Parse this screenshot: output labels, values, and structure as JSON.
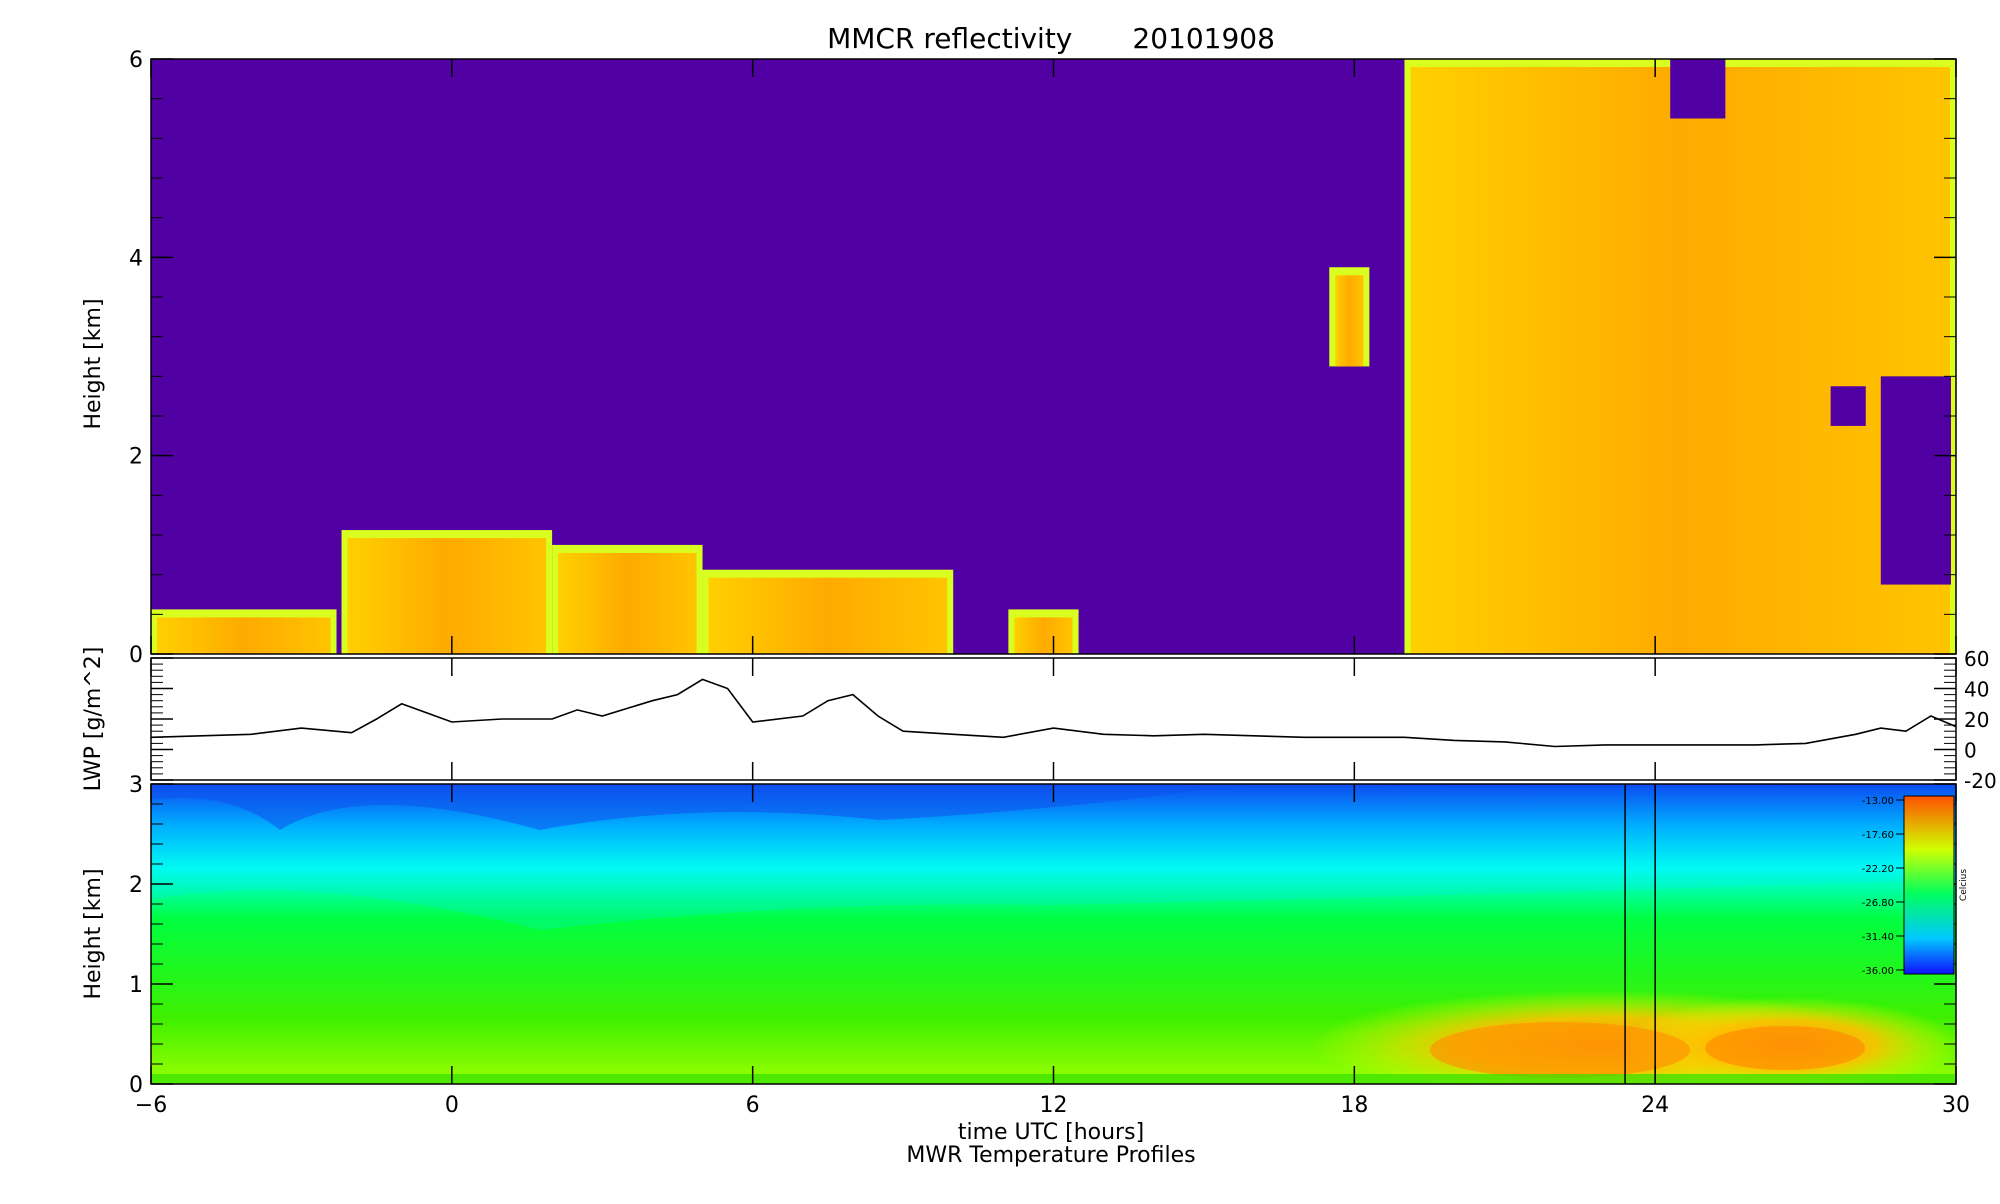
{
  "figure": {
    "title": "MMCR reflectivity",
    "date": "20101908",
    "xlabel": "time UTC [hours]",
    "bottom_caption": "MWR Temperature Profiles"
  },
  "chart_data": [
    {
      "type": "heatmap",
      "name": "reflectivity",
      "ylabel": "Height [km]",
      "xlim": [
        -6,
        30
      ],
      "ylim": [
        0,
        6
      ],
      "xticks": [
        -6,
        0,
        6,
        12,
        18,
        24,
        30
      ],
      "yticks": [
        0,
        2,
        4,
        6
      ],
      "background_color": "#5000a3",
      "cloud_regions": [
        {
          "x": [
            -6,
            -2.3
          ],
          "top": 0.45
        },
        {
          "x": [
            -2.2,
            2.0
          ],
          "top": 1.25
        },
        {
          "x": [
            2.0,
            5.0
          ],
          "top": 1.1
        },
        {
          "x": [
            5.0,
            10.0
          ],
          "top": 0.85
        },
        {
          "x": [
            11.1,
            12.5
          ],
          "top": 0.45
        },
        {
          "x": [
            17.5,
            18.3
          ],
          "y": [
            2.9,
            3.9
          ]
        },
        {
          "x": [
            19.0,
            30.0
          ],
          "top": 6.0
        }
      ],
      "colors": {
        "cloud_edge": "#d8ff20",
        "cloud_core": "#ffa500"
      }
    },
    {
      "type": "line",
      "name": "lwp",
      "ylabel": "LWP [g/m^2]",
      "xlim": [
        -6,
        30
      ],
      "ylim": [
        -20,
        60
      ],
      "yticks": [
        -20,
        0,
        20,
        40,
        60
      ],
      "x": [
        -6,
        -4,
        -3,
        -2,
        -1.5,
        -1,
        -0.5,
        0,
        1,
        2,
        2.5,
        3,
        4,
        4.5,
        5,
        5.5,
        6,
        7,
        7.5,
        8,
        8.5,
        9,
        10,
        11,
        12,
        13,
        14,
        15,
        16,
        17,
        18,
        19,
        20,
        21,
        22,
        23,
        24,
        25,
        26,
        27,
        28,
        28.5,
        29,
        29.5,
        30
      ],
      "y": [
        8,
        10,
        14,
        11,
        20,
        30,
        24,
        18,
        20,
        20,
        26,
        22,
        32,
        36,
        46,
        40,
        18,
        22,
        32,
        36,
        22,
        12,
        10,
        8,
        14,
        10,
        9,
        10,
        9,
        8,
        8,
        8,
        6,
        5,
        2,
        3,
        3,
        3,
        3,
        4,
        10,
        14,
        12,
        22,
        15
      ]
    },
    {
      "type": "heatmap",
      "name": "temperature",
      "ylabel": "Height [km]",
      "xlim": [
        -6,
        30
      ],
      "ylim": [
        0,
        3
      ],
      "yticks": [
        0,
        1,
        2,
        3
      ],
      "markers_x": [
        23.4,
        24.0
      ],
      "colorbar": {
        "label": "Celcius",
        "ticks": [
          "-13.00",
          "-17.60",
          "-22.20",
          "-26.80",
          "-31.40",
          "-36.00"
        ]
      }
    }
  ]
}
